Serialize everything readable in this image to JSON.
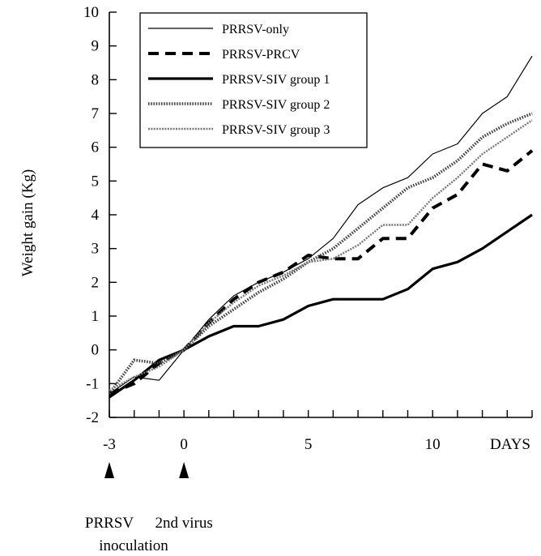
{
  "chart_data": {
    "type": "line",
    "title": "",
    "ylabel": "Weight gain (Kg)",
    "xlabel": "DAYS",
    "xlim": [
      -3,
      14
    ],
    "ylim": [
      -2,
      10
    ],
    "x_tick_labels": [
      {
        "value": -3,
        "label": "-3"
      },
      {
        "value": 0,
        "label": "0"
      },
      {
        "value": 5,
        "label": "5"
      },
      {
        "value": 10,
        "label": "10"
      }
    ],
    "y_tick_labels": [
      "-2",
      "-1",
      "0",
      "1",
      "2",
      "3",
      "4",
      "5",
      "6",
      "7",
      "8",
      "9",
      "10"
    ],
    "grid": false,
    "legend_position": "top-left",
    "annotations": [
      {
        "x": -3,
        "label": "PRRSV",
        "sublabel": "inoculation"
      },
      {
        "x": 0,
        "label": "2nd virus",
        "sublabel": ""
      }
    ],
    "series": [
      {
        "name": "PRRSV-only",
        "style": "thin",
        "x": [
          -3,
          -2,
          -1,
          0,
          1,
          2,
          3,
          4,
          5,
          6,
          7,
          8,
          9,
          10,
          11,
          12,
          13,
          14
        ],
        "y": [
          -1.3,
          -0.8,
          -0.9,
          0.0,
          0.9,
          1.6,
          2.0,
          2.3,
          2.7,
          3.3,
          4.3,
          4.8,
          5.1,
          5.8,
          6.1,
          7.0,
          7.5,
          8.7
        ]
      },
      {
        "name": "PRRSV-PRCV",
        "style": "dashed-thick",
        "x": [
          -3,
          -2,
          -1,
          0,
          1,
          2,
          3,
          4,
          5,
          6,
          7,
          8,
          9,
          10,
          11,
          12,
          13,
          14
        ],
        "y": [
          -1.3,
          -1.0,
          -0.4,
          0.0,
          0.8,
          1.5,
          2.0,
          2.3,
          2.8,
          2.7,
          2.7,
          3.3,
          3.3,
          4.2,
          4.6,
          5.5,
          5.3,
          5.9
        ]
      },
      {
        "name": "PRRSV-SIV group 1",
        "style": "solid-thick",
        "x": [
          -3,
          -2,
          -1,
          0,
          1,
          2,
          3,
          4,
          5,
          6,
          7,
          8,
          9,
          10,
          11,
          12,
          13,
          14
        ],
        "y": [
          -1.4,
          -0.9,
          -0.3,
          0.0,
          0.4,
          0.7,
          0.7,
          0.9,
          1.3,
          1.5,
          1.5,
          1.5,
          1.8,
          2.4,
          2.6,
          3.0,
          3.5,
          4.0
        ]
      },
      {
        "name": "PRRSV-SIV group 2",
        "style": "dotted-wide",
        "x": [
          -3,
          -2,
          -1,
          0,
          1,
          2,
          3,
          4,
          5,
          6,
          7,
          8,
          9,
          10,
          11,
          12,
          13,
          14
        ],
        "y": [
          -1.3,
          -0.3,
          -0.4,
          0.0,
          0.7,
          1.2,
          1.7,
          2.1,
          2.6,
          3.0,
          3.6,
          4.2,
          4.8,
          5.1,
          5.6,
          6.3,
          6.7,
          7.0
        ]
      },
      {
        "name": "PRRSV-SIV group 3",
        "style": "dotted-gray",
        "x": [
          -3,
          -2,
          -1,
          0,
          1,
          2,
          3,
          4,
          5,
          6,
          7,
          8,
          9,
          10,
          11,
          12,
          13,
          14
        ],
        "y": [
          -1.2,
          -0.8,
          -0.5,
          0.0,
          0.8,
          1.4,
          1.9,
          2.2,
          2.6,
          2.7,
          3.1,
          3.7,
          3.7,
          4.5,
          5.1,
          5.8,
          6.3,
          6.8
        ]
      }
    ]
  }
}
